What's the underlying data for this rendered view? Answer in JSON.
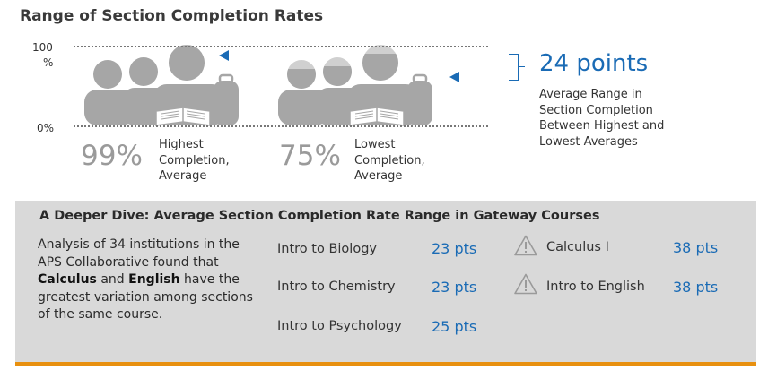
{
  "title": "Range of Section Completion Rates",
  "axis": {
    "top_label": "100",
    "top_unit": "%",
    "bottom_label": "0%"
  },
  "chart_data": {
    "type": "bar",
    "title": "Range of Section Completion Rates",
    "categories": [
      "Highest Completion, Average",
      "Lowest Completion, Average"
    ],
    "values": [
      99,
      75
    ],
    "ylim": [
      0,
      100
    ],
    "range_points": 24
  },
  "highest": {
    "value": "99%",
    "label_lines": [
      "Highest",
      "Completion,",
      "Average"
    ]
  },
  "lowest": {
    "value": "75%",
    "label_lines": [
      "Lowest",
      "Completion,",
      "Average"
    ]
  },
  "range": {
    "value": "24 points",
    "desc_lines": [
      "Average Range in",
      "Section Completion",
      "Between Highest and",
      "Lowest Averages"
    ]
  },
  "panel": {
    "title": "A Deeper Dive: Average Section Completion Rate Range in Gateway Courses",
    "desc_pre": "Analysis of 34 institutions in the APS Collaborative found that ",
    "desc_bold1": "Calculus",
    "desc_mid": " and ",
    "desc_bold2": "English",
    "desc_post": " have the greatest variation among sections of the same course.",
    "courses": [
      {
        "name": "Intro to Biology",
        "pts": "23 pts"
      },
      {
        "name": "Intro to Chemistry",
        "pts": "23 pts"
      },
      {
        "name": "Intro to Psychology",
        "pts": "25 pts"
      },
      {
        "name": "Calculus I",
        "pts": "38 pts",
        "icon": "warning-icon"
      },
      {
        "name": "Intro to English",
        "pts": "38 pts",
        "icon": "warning-icon"
      }
    ]
  },
  "colors": {
    "accent": "#1a6bb5",
    "figure": "#a6a6a6",
    "figure_light": "#d0d0d0",
    "panel_bg": "#d9d9d9",
    "panel_rule": "#e8900f"
  }
}
